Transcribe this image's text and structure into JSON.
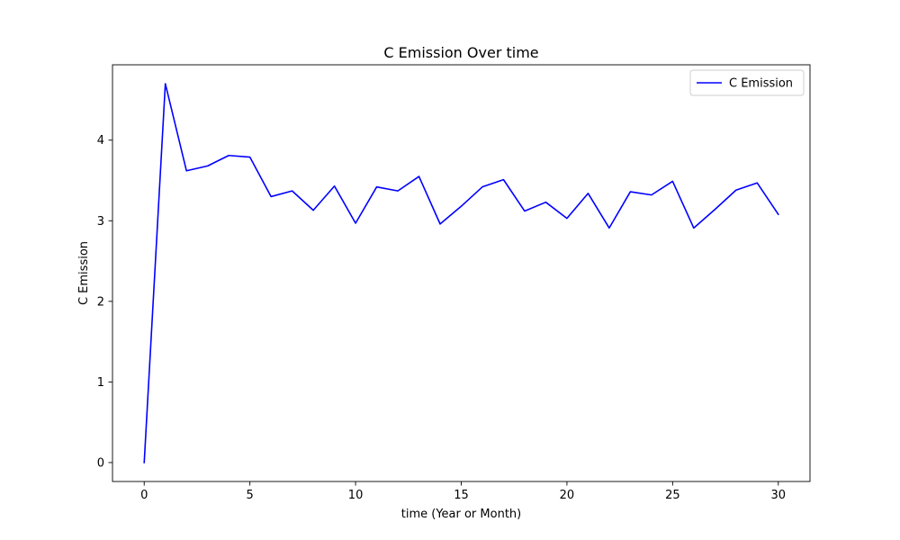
{
  "chart_data": {
    "type": "line",
    "title": "C Emission Over time",
    "xlabel": "time (Year or Month)",
    "ylabel": "C Emission",
    "xlim": [
      -1.5,
      31.5
    ],
    "ylim": [
      -0.235,
      4.935
    ],
    "xticks": [
      0,
      5,
      10,
      15,
      20,
      25,
      30
    ],
    "yticks": [
      0,
      1,
      2,
      3,
      4
    ],
    "grid": false,
    "legend": "top-right",
    "series": [
      {
        "name": "C Emission",
        "color": "#0000ff",
        "x": [
          0,
          1,
          2,
          3,
          4,
          5,
          6,
          7,
          8,
          9,
          10,
          11,
          12,
          13,
          14,
          15,
          16,
          17,
          18,
          19,
          20,
          21,
          22,
          23,
          24,
          25,
          26,
          27,
          28,
          29,
          30
        ],
        "y": [
          0.0,
          4.7,
          3.62,
          3.68,
          3.81,
          3.79,
          3.3,
          3.37,
          3.13,
          3.43,
          2.97,
          3.42,
          3.37,
          3.55,
          2.96,
          3.18,
          3.42,
          3.51,
          3.12,
          3.23,
          3.03,
          3.34,
          2.91,
          3.36,
          3.32,
          3.49,
          2.91,
          3.14,
          3.38,
          3.47,
          3.08
        ]
      }
    ]
  }
}
